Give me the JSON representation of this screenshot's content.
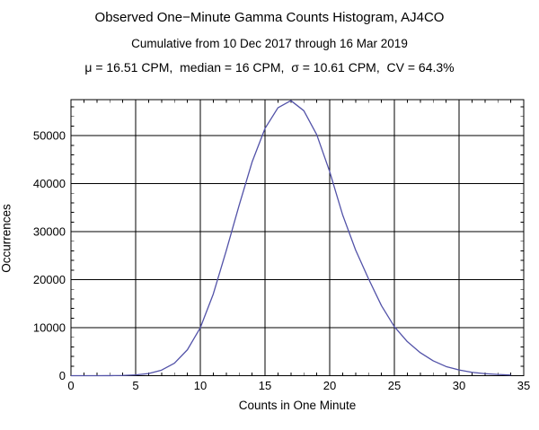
{
  "titles": {
    "line1": "Observed One−Minute Gamma Counts Histogram, AJ4CO",
    "line2": "Cumulative from 10 Dec 2017 through 16 Mar 2019",
    "line3": "μ = 16.51 CPM,  median = 16 CPM,  σ = 10.61 CPM,  CV = 64.3%"
  },
  "stats": {
    "mean_cpm": 16.51,
    "median_cpm": 16,
    "sigma_cpm": 10.61,
    "cv_percent": 64.3
  },
  "chart_data": {
    "type": "line",
    "title": "Observed One−Minute Gamma Counts Histogram, AJ4CO",
    "subtitle": "Cumulative from 10 Dec 2017 through 16 Mar 2019",
    "xlabel": "Counts in One Minute",
    "ylabel": "Occurrences",
    "xlim": [
      0,
      35
    ],
    "ylim": [
      0,
      57500
    ],
    "grid": true,
    "legend": "none",
    "x_ticks": [
      0,
      5,
      10,
      15,
      20,
      25,
      30,
      35
    ],
    "x_tick_labels": [
      "0",
      "5",
      "10",
      "15",
      "20",
      "25",
      "30",
      "35"
    ],
    "y_ticks": [
      0,
      10000,
      20000,
      30000,
      40000,
      50000
    ],
    "y_tick_labels": [
      "0",
      "10000",
      "20000",
      "30000",
      "40000",
      "50000"
    ],
    "x_minor_step": 1,
    "y_minor_step": 2000,
    "frame_color": "#000000",
    "grid_color": "#000000",
    "line_color": "#5252a8",
    "series": [
      {
        "name": "one-minute-count-occurrences",
        "x": [
          0,
          1,
          2,
          3,
          4,
          5,
          6,
          7,
          8,
          9,
          10,
          11,
          12,
          13,
          14,
          15,
          16,
          17,
          18,
          19,
          20,
          21,
          22,
          23,
          24,
          25,
          26,
          27,
          28,
          29,
          30,
          31,
          32,
          33,
          34
        ],
        "y": [
          0,
          0,
          5,
          15,
          50,
          160,
          450,
          1150,
          2600,
          5400,
          10000,
          17000,
          26000,
          35500,
          44500,
          51500,
          55800,
          57300,
          55200,
          50200,
          42500,
          33500,
          26200,
          20200,
          14600,
          10200,
          7100,
          4800,
          3100,
          1900,
          1200,
          700,
          420,
          250,
          140
        ]
      }
    ]
  }
}
